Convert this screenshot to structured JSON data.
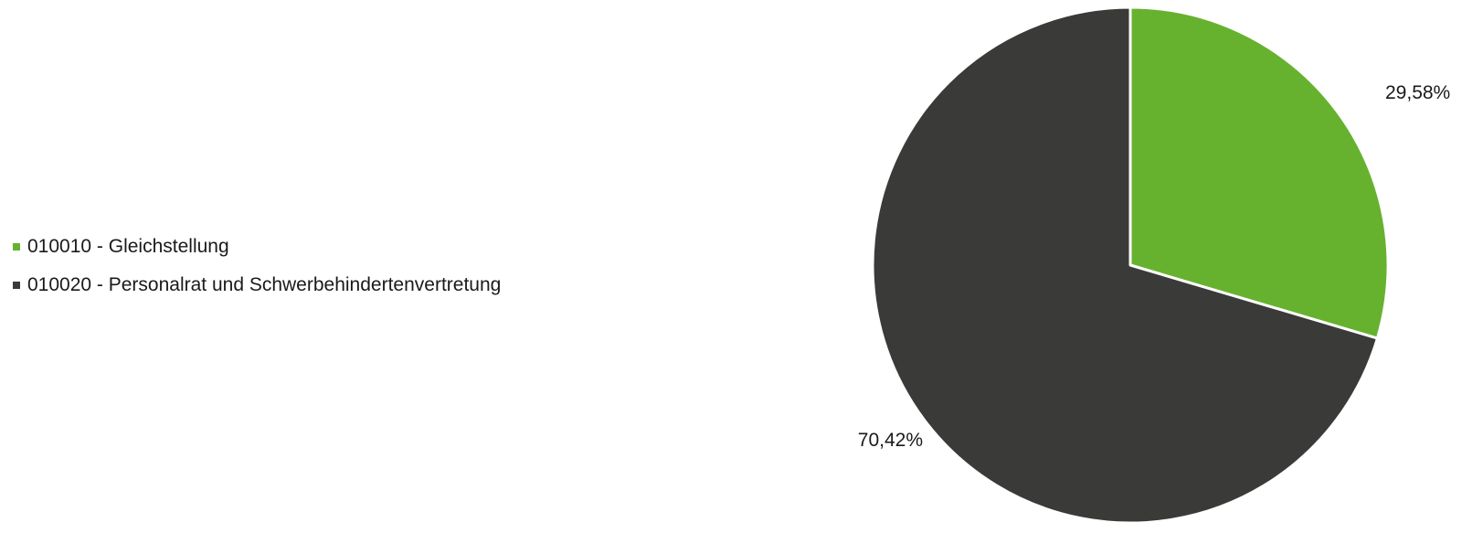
{
  "chart_data": {
    "type": "pie",
    "title": "",
    "start_angle_deg": 0,
    "direction": "clockwise",
    "legend_position": "left",
    "slices": [
      {
        "name": "010010 - Gleichstellung",
        "value": 29.58,
        "label": "29,58%",
        "color": "#66b22f"
      },
      {
        "name": "010020 - Personalrat und Schwerbehindertenvertretung",
        "value": 70.42,
        "label": "70,42%",
        "color": "#3a3a38"
      }
    ]
  }
}
